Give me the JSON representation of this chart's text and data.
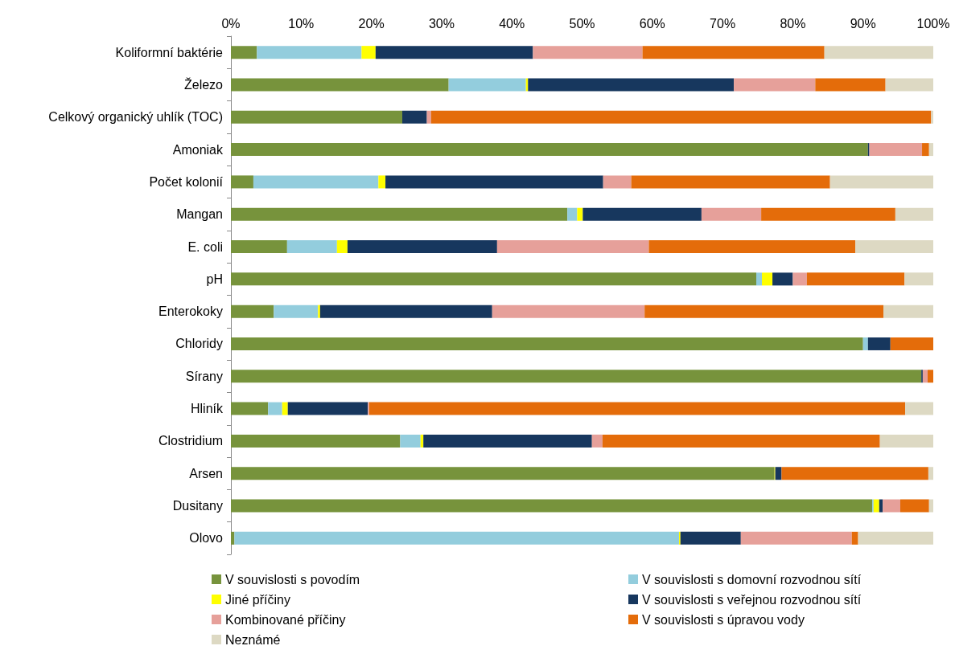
{
  "chart_data": {
    "type": "bar",
    "orientation": "horizontal",
    "stacked": true,
    "categories": [
      "Koliformní baktérie",
      "Železo",
      "Celkový organický uhlík (TOC)",
      "Amoniak",
      "Počet kolonií",
      "Mangan",
      "E. coli",
      "pH",
      "Enterokoky",
      "Chloridy",
      "Sírany",
      "Hliník",
      "Clostridium",
      "Arsen",
      "Dusitany",
      "Olovo"
    ],
    "series": [
      {
        "name": "V souvislosti s povodím",
        "color": "#77933c",
        "values": [
          3.7,
          31.0,
          24.4,
          90.7,
          3.2,
          47.9,
          8.0,
          74.8,
          6.1,
          90.0,
          98.3,
          5.3,
          24.1,
          77.4,
          91.3,
          0.5
        ]
      },
      {
        "name": "V souvislosti s domovní rozvodnou sítí",
        "color": "#93cddd",
        "values": [
          14.9,
          11.0,
          0,
          0,
          17.8,
          1.4,
          7.1,
          0.8,
          6.3,
          0.7,
          0,
          2.0,
          2.9,
          0,
          0.2,
          63.3
        ]
      },
      {
        "name": "Jiné příčiny",
        "color": "#ffff00",
        "values": [
          2.0,
          0.3,
          0,
          0,
          1.0,
          0.8,
          1.5,
          1.5,
          0.3,
          0,
          0,
          0.8,
          0.4,
          0.1,
          0.8,
          0.2
        ]
      },
      {
        "name": "V souvislosti s veřejnou rozvodnou sítí",
        "color": "#17375e",
        "values": [
          22.4,
          29.3,
          3.5,
          0.2,
          31.0,
          16.9,
          21.3,
          2.9,
          24.5,
          3.2,
          0.2,
          11.4,
          24.0,
          0.9,
          0.5,
          8.6
        ]
      },
      {
        "name": "Kombinované příčiny",
        "color": "#e6a09a",
        "values": [
          15.6,
          11.6,
          0.6,
          7.5,
          4.0,
          8.5,
          21.6,
          2.0,
          21.7,
          0,
          0.7,
          0.2,
          1.5,
          0,
          2.5,
          15.8
        ]
      },
      {
        "name": "V souvislosti s úpravou vody",
        "color": "#e46c0a",
        "values": [
          25.9,
          10.0,
          71.2,
          1.0,
          28.3,
          19.1,
          29.4,
          13.9,
          34.0,
          6.1,
          0.8,
          76.3,
          39.5,
          20.9,
          4.1,
          0.9
        ]
      },
      {
        "name": "Neznámé",
        "color": "#ddd9c3",
        "values": [
          15.5,
          6.8,
          0.3,
          0.6,
          14.7,
          5.4,
          11.1,
          4.1,
          7.1,
          0,
          null,
          4.0,
          7.6,
          0.7,
          0.6,
          10.7
        ]
      }
    ],
    "xlim": [
      0,
      100
    ],
    "xticks": [
      {
        "value": 0,
        "label": "0%"
      },
      {
        "value": 10,
        "label": "10%"
      },
      {
        "value": 20,
        "label": "20%"
      },
      {
        "value": 30,
        "label": "30%"
      },
      {
        "value": 40,
        "label": "40%"
      },
      {
        "value": 50,
        "label": "50%"
      },
      {
        "value": 60,
        "label": "60%"
      },
      {
        "value": 70,
        "label": "70%"
      },
      {
        "value": 80,
        "label": "80%"
      },
      {
        "value": 90,
        "label": "90%"
      },
      {
        "value": 100,
        "label": "100%"
      }
    ],
    "grid": false,
    "legend": "bottom"
  }
}
